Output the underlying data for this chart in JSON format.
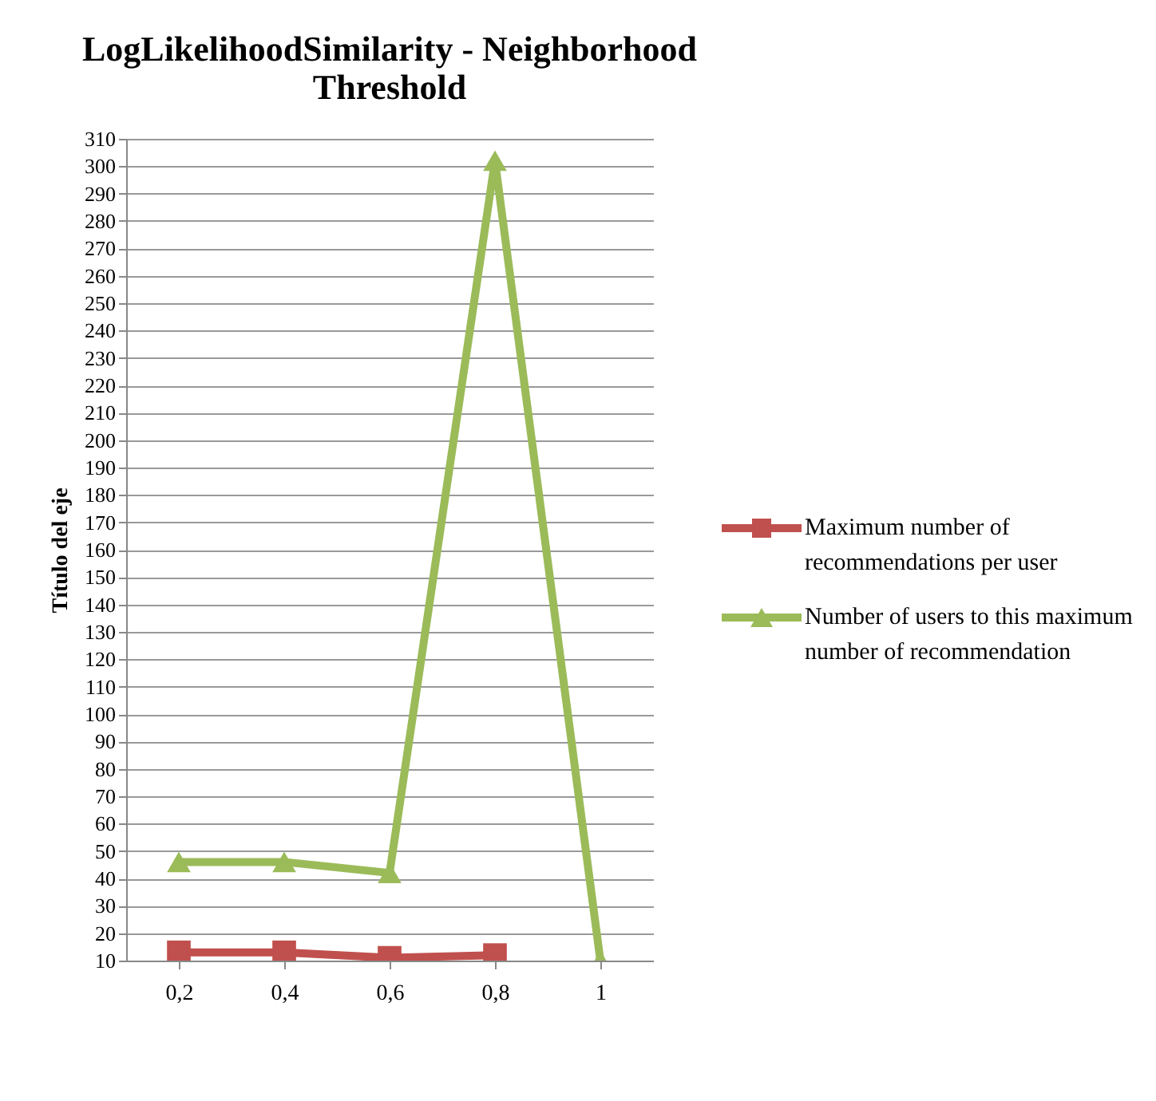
{
  "chart_data": {
    "type": "line",
    "title": [
      "LogLikelihoodSimilarity  - Neighborhood",
      "Threshold"
    ],
    "ylabel": "Título del eje",
    "categories": [
      "0,2",
      "0,4",
      "0,6",
      "0,8",
      "1"
    ],
    "series": [
      {
        "name": "Maximum number of recommendations per user",
        "color": "#c0504d",
        "marker": "square",
        "values": [
          13,
          13,
          11,
          12,
          null
        ]
      },
      {
        "name": "Number of users to this maximum number of recommendation",
        "color": "#9bbb59",
        "marker": "triangle",
        "values": [
          46,
          46,
          42,
          302,
          10
        ]
      }
    ],
    "ylim": [
      10,
      310
    ],
    "yticks": [
      10,
      20,
      30,
      40,
      50,
      60,
      70,
      80,
      90,
      100,
      110,
      120,
      130,
      140,
      150,
      160,
      170,
      180,
      190,
      200,
      210,
      220,
      230,
      240,
      250,
      260,
      270,
      280,
      290,
      300,
      310
    ],
    "grid": "y",
    "legend": "right",
    "line_style": "solid"
  }
}
